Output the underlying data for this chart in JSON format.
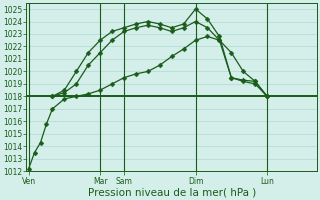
{
  "background_color": "#d4eeea",
  "grid_color": "#b2d8d2",
  "line_color": "#1a5c1a",
  "xlabel": "Pression niveau de la mer( hPa )",
  "ylim": [
    1012,
    1025.5
  ],
  "yticks": [
    1012,
    1013,
    1014,
    1015,
    1016,
    1017,
    1018,
    1019,
    1020,
    1021,
    1022,
    1023,
    1024,
    1025
  ],
  "xlim": [
    -0.2,
    24.2
  ],
  "xtick_labels": [
    "Ven",
    "Mar",
    "Sam",
    "Dim",
    "Lun"
  ],
  "xtick_positions": [
    0,
    6,
    8,
    14,
    20
  ],
  "vline_positions": [
    0,
    6,
    8,
    14,
    20
  ],
  "hline_y": 1018,
  "line1_x": [
    0,
    0.5,
    1,
    1.5,
    2,
    3,
    4,
    5,
    6,
    7,
    8,
    9,
    10,
    11,
    12,
    13,
    14,
    15,
    16,
    17,
    18,
    19,
    20
  ],
  "line1_y": [
    1012.2,
    1013.5,
    1014.3,
    1015.8,
    1017.0,
    1017.8,
    1018.0,
    1018.2,
    1018.5,
    1019.0,
    1019.5,
    1019.8,
    1020.0,
    1020.5,
    1021.2,
    1021.8,
    1022.5,
    1022.8,
    1022.5,
    1021.5,
    1020.0,
    1019.2,
    1018.0
  ],
  "line2_x": [
    2,
    3,
    4,
    5,
    6,
    7,
    8,
    9,
    10,
    11,
    12,
    13,
    14,
    15,
    16,
    17,
    18,
    19,
    20
  ],
  "line2_y": [
    1018.0,
    1018.3,
    1019.0,
    1020.5,
    1021.5,
    1022.5,
    1023.2,
    1023.5,
    1023.7,
    1023.5,
    1023.2,
    1023.5,
    1024.0,
    1023.5,
    1022.5,
    1019.5,
    1019.3,
    1019.2,
    1018.0
  ],
  "line3_x": [
    2,
    3,
    4,
    5,
    6,
    7,
    8,
    9,
    10,
    11,
    12,
    13,
    14,
    15,
    16,
    17,
    18,
    19,
    20
  ],
  "line3_y": [
    1018.0,
    1018.5,
    1020.0,
    1021.5,
    1022.5,
    1023.2,
    1023.5,
    1023.8,
    1024.0,
    1023.8,
    1023.5,
    1023.8,
    1025.0,
    1024.2,
    1022.8,
    1019.5,
    1019.2,
    1019.0,
    1018.0
  ],
  "line4_x": [
    0,
    20
  ],
  "line4_y": [
    1018.0,
    1018.0
  ],
  "marker_size": 2.5,
  "linewidth": 0.9,
  "xlabel_fontsize": 7.5,
  "tick_fontsize": 5.5
}
